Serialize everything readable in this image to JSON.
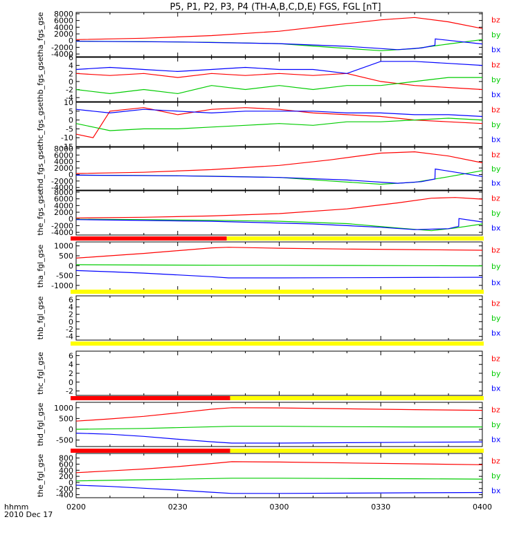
{
  "title": "P5, P1, P2, P3, P4 (TH-A,B,C,D,E) FGS, FGL [nT]",
  "footer": {
    "label_line1": "hhmm",
    "label_line2": "2010 Dec 17",
    "x_ticks": [
      "0200",
      "0230",
      "0300",
      "0330",
      "0400"
    ]
  },
  "colors": {
    "bx": "#0000ff",
    "by": "#00cc00",
    "bz": "#ff0000",
    "bar_red": "#ff0000",
    "bar_yellow": "#ffff00"
  },
  "chart_data": {
    "type": "line",
    "x_unit": "minutes after 02:00 UT",
    "xlim": [
      0,
      120
    ],
    "legend": [
      "bz",
      "by",
      "bx"
    ],
    "legend_placement": "right",
    "panels": [
      {
        "ylabel": "tha_fgs_gse",
        "ylim": [
          -4800,
          8400
        ],
        "yticks": [
          "8000",
          "6000",
          "4000",
          "2000",
          "0",
          "-2000",
          "-4000"
        ],
        "ytick_values": [
          8000,
          6000,
          4000,
          2000,
          0,
          -2000,
          -4000
        ],
        "series": [
          {
            "name": "bz",
            "x": [
              0,
              20,
              40,
              60,
              75,
              90,
              100,
              110,
              120
            ],
            "y": [
              300,
              700,
              1500,
              2800,
              4500,
              6200,
              6900,
              5600,
              3600
            ]
          },
          {
            "name": "by",
            "x": [
              0,
              20,
              40,
              60,
              75,
              90,
              100,
              110,
              120
            ],
            "y": [
              -200,
              -300,
              -500,
              -900,
              -2000,
              -3000,
              -2400,
              -1000,
              300
            ]
          },
          {
            "name": "bx",
            "x": [
              0,
              30,
              60,
              80,
              95,
              102,
              106,
              106.1,
              120
            ],
            "y": [
              -200,
              -400,
              -900,
              -1700,
              -2700,
              -2200,
              -1400,
              500,
              -1000
            ]
          }
        ]
      },
      {
        "ylabel": "thb_fgs_gse",
        "ylim": [
          -5,
          6
        ],
        "yticks": [
          "6",
          "4",
          "2",
          "0",
          "-2",
          "-4"
        ],
        "ytick_values": [
          6,
          4,
          2,
          0,
          -2,
          -4
        ],
        "series": [
          {
            "name": "bz",
            "x": [
              0,
              10,
              20,
              30,
              40,
              50,
              60,
              70,
              80,
              90,
              100,
              110,
              120
            ],
            "y": [
              2,
              1.5,
              2,
              1,
              2,
              1.5,
              2,
              1.5,
              2,
              0,
              -1,
              -1.5,
              -2
            ]
          },
          {
            "name": "by",
            "x": [
              0,
              10,
              20,
              30,
              40,
              50,
              60,
              70,
              80,
              90,
              100,
              110,
              120
            ],
            "y": [
              -2,
              -3,
              -2,
              -3,
              -1,
              -2,
              -1,
              -2,
              -1,
              -1,
              0,
              1,
              1
            ]
          },
          {
            "name": "bx",
            "x": [
              0,
              10,
              20,
              30,
              40,
              50,
              60,
              70,
              80,
              90,
              100,
              110,
              120
            ],
            "y": [
              3,
              3.5,
              3,
              2.5,
              3,
              3.5,
              3,
              3,
              2,
              5,
              5,
              4.5,
              4
            ]
          }
        ]
      },
      {
        "ylabel": "thc_fgs_gse",
        "ylim": [
          -15,
          10
        ],
        "yticks": [
          "10",
          "5",
          "0",
          "-5",
          "-10",
          "-15"
        ],
        "ytick_values": [
          10,
          5,
          0,
          -5,
          -10,
          -15
        ],
        "series": [
          {
            "name": "bz",
            "x": [
              0,
              5,
              10,
              20,
              30,
              40,
              50,
              60,
              70,
              80,
              90,
              100,
              110,
              120
            ],
            "y": [
              -8,
              -10,
              5,
              7,
              3,
              6,
              7,
              6,
              4,
              3,
              2,
              0,
              -1,
              -2
            ]
          },
          {
            "name": "by",
            "x": [
              0,
              5,
              10,
              20,
              30,
              40,
              50,
              60,
              70,
              80,
              90,
              100,
              110,
              120
            ],
            "y": [
              -2,
              -4,
              -6,
              -5,
              -5,
              -4,
              -3,
              -2,
              -3,
              -1,
              -1,
              0,
              1,
              0
            ]
          },
          {
            "name": "bx",
            "x": [
              0,
              5,
              10,
              20,
              30,
              40,
              50,
              60,
              70,
              80,
              90,
              100,
              110,
              120
            ],
            "y": [
              6,
              5,
              4,
              6,
              5,
              4,
              5,
              5,
              5,
              4,
              4,
              3,
              3,
              2
            ]
          }
        ]
      },
      {
        "ylabel": "thd_fgs_gse",
        "ylim": [
          -4800,
          8400
        ],
        "yticks": [
          "8000",
          "6000",
          "4000",
          "2000",
          "0",
          "-2000",
          "-4000"
        ],
        "ytick_values": [
          8000,
          6000,
          4000,
          2000,
          0,
          -2000,
          -4000
        ],
        "series": [
          {
            "name": "bz",
            "x": [
              0,
              20,
              40,
              60,
              75,
              90,
              100,
              110,
              120
            ],
            "y": [
              300,
              700,
              1500,
              2800,
              4500,
              6600,
              7000,
              5700,
              3600
            ]
          },
          {
            "name": "by",
            "x": [
              0,
              20,
              40,
              60,
              75,
              90,
              100,
              110,
              120
            ],
            "y": [
              -200,
              -300,
              -500,
              -900,
              -2000,
              -3000,
              -2400,
              -700,
              1200
            ]
          },
          {
            "name": "bx",
            "x": [
              0,
              30,
              60,
              80,
              95,
              102,
              106,
              106.1,
              120
            ],
            "y": [
              -200,
              -400,
              -900,
              -1700,
              -2700,
              -2200,
              -1400,
              1700,
              -600
            ]
          }
        ]
      },
      {
        "ylabel": "the_fgs_gse",
        "ylim": [
          -4800,
          8400
        ],
        "yticks": [
          "8000",
          "6000",
          "4000",
          "2000",
          "0",
          "-2000",
          "-4000"
        ],
        "ytick_values": [
          8000,
          6000,
          4000,
          2000,
          0,
          -2000,
          -4000
        ],
        "series": [
          {
            "name": "bz",
            "x": [
              0,
              20,
              40,
              60,
              80,
              95,
              105,
              112,
              120
            ],
            "y": [
              300,
              500,
              900,
              1600,
              3000,
              4800,
              6200,
              6400,
              5900
            ]
          },
          {
            "name": "by",
            "x": [
              0,
              20,
              40,
              60,
              80,
              95,
              105,
              112,
              120
            ],
            "y": [
              -100,
              -200,
              -400,
              -700,
              -1400,
              -2700,
              -3500,
              -2700,
              -1500
            ]
          },
          {
            "name": "bx",
            "x": [
              0,
              40,
              70,
              90,
              100,
              110,
              113,
              113.1,
              120
            ],
            "y": [
              -200,
              -700,
              -1500,
              -2500,
              -3200,
              -2900,
              -2200,
              100,
              -900
            ]
          }
        ]
      },
      {
        "ylabel": "tha_fgl_gse",
        "ylim": [
          -1250,
          1200
        ],
        "yticks": [
          "1000",
          "500",
          "0",
          "-500",
          "-1000"
        ],
        "ytick_values": [
          1000,
          500,
          0,
          -500,
          -1000
        ],
        "series": [
          {
            "name": "bz",
            "x": [
              0,
              10,
              20,
              30,
              40,
              45,
              60,
              80,
              100,
              120
            ],
            "y": [
              380,
              500,
              620,
              760,
              900,
              930,
              880,
              840,
              810,
              780
            ]
          },
          {
            "name": "by",
            "x": [
              0,
              20,
              45,
              60,
              80,
              100,
              120
            ],
            "y": [
              50,
              30,
              20,
              20,
              10,
              0,
              -10
            ]
          },
          {
            "name": "bx",
            "x": [
              0,
              10,
              20,
              30,
              40,
              45,
              60,
              80,
              100,
              120
            ],
            "y": [
              -250,
              -310,
              -380,
              -470,
              -560,
              -620,
              -620,
              -610,
              -600,
              -590
            ]
          }
        ]
      },
      {
        "ylabel": "thb_fgl_gse",
        "ylim": [
          -5,
          7
        ],
        "yticks": [
          "6",
          "4",
          "2",
          "0",
          "-2",
          "-4"
        ],
        "ytick_values": [
          6,
          4,
          2,
          0,
          -2,
          -4
        ],
        "series": []
      },
      {
        "ylabel": "thc_fgl_gse",
        "ylim": [
          -3,
          7
        ],
        "yticks": [
          "6",
          "4",
          "2",
          "0",
          "-2"
        ],
        "ytick_values": [
          6,
          4,
          2,
          0,
          -2
        ],
        "series": []
      },
      {
        "ylabel": "thd_fgl_gse",
        "ylim": [
          -800,
          1250
        ],
        "yticks": [
          "1000",
          "500",
          "0",
          "-500"
        ],
        "ytick_values": [
          1000,
          500,
          0,
          -500
        ],
        "series": [
          {
            "name": "bz",
            "x": [
              0,
              10,
              20,
              30,
              40,
              46,
              60,
              80,
              100,
              120
            ],
            "y": [
              380,
              480,
              600,
              760,
              930,
              1000,
              990,
              950,
              910,
              880
            ]
          },
          {
            "name": "by",
            "x": [
              0,
              20,
              46,
              60,
              80,
              100,
              120
            ],
            "y": [
              0,
              40,
              140,
              140,
              120,
              110,
              110
            ]
          },
          {
            "name": "bx",
            "x": [
              0,
              10,
              20,
              30,
              40,
              46,
              60,
              80,
              100,
              120
            ],
            "y": [
              -180,
              -230,
              -330,
              -460,
              -580,
              -640,
              -640,
              -620,
              -600,
              -590
            ]
          }
        ]
      },
      {
        "ylabel": "the_fgl_gse",
        "ylim": [
          -500,
          950
        ],
        "yticks": [
          "800",
          "600",
          "400",
          "200",
          "0",
          "-200",
          "-400"
        ],
        "ytick_values": [
          800,
          600,
          400,
          200,
          0,
          -200,
          -400
        ],
        "series": [
          {
            "name": "bz",
            "x": [
              0,
              10,
              20,
              30,
              40,
              46,
              60,
              80,
              100,
              120
            ],
            "y": [
              320,
              380,
              440,
              520,
              620,
              680,
              670,
              640,
              610,
              580
            ]
          },
          {
            "name": "by",
            "x": [
              0,
              20,
              46,
              60,
              80,
              100,
              120
            ],
            "y": [
              50,
              90,
              140,
              140,
              130,
              120,
              110
            ]
          },
          {
            "name": "bx",
            "x": [
              0,
              10,
              20,
              30,
              40,
              46,
              60,
              80,
              100,
              120
            ],
            "y": [
              -90,
              -130,
              -190,
              -250,
              -320,
              -360,
              -360,
              -350,
              -340,
              -330
            ]
          }
        ]
      }
    ],
    "status_bars": [
      {
        "after_panel": 4,
        "red_until": 44.5
      },
      {
        "after_panel": 5,
        "red_until": 0
      },
      {
        "after_panel": 6,
        "red_until": 0
      },
      {
        "after_panel": 7,
        "red_until": 45.5
      },
      {
        "after_panel": 8,
        "red_until": 45.5
      }
    ]
  }
}
